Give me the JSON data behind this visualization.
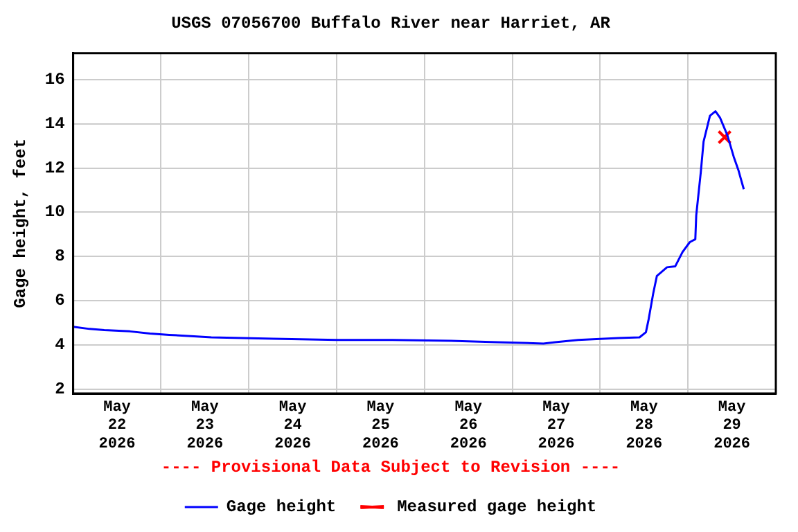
{
  "chart_data": {
    "type": "line",
    "title": "USGS 07056700 Buffalo River near Harriet, AR",
    "ylabel": "Gage height, feet",
    "annotations": [
      "---- Provisional Data Subject to Revision ----"
    ],
    "xlim": [
      "2026-05-22T00:00",
      "2026-05-30T00:00"
    ],
    "xticks": [
      {
        "value": "2026-05-22T00:00",
        "label": null
      },
      {
        "value": "2026-05-22T12:00",
        "label": "May\n22\n2026"
      },
      {
        "value": "2026-05-23T00:00",
        "label": null
      },
      {
        "value": "2026-05-23T12:00",
        "label": "May\n23\n2026"
      },
      {
        "value": "2026-05-24T00:00",
        "label": null
      },
      {
        "value": "2026-05-24T12:00",
        "label": "May\n24\n2026"
      },
      {
        "value": "2026-05-25T00:00",
        "label": null
      },
      {
        "value": "2026-05-25T12:00",
        "label": "May\n25\n2026"
      },
      {
        "value": "2026-05-26T00:00",
        "label": null
      },
      {
        "value": "2026-05-26T12:00",
        "label": "May\n26\n2026"
      },
      {
        "value": "2026-05-27T00:00",
        "label": null
      },
      {
        "value": "2026-05-27T12:00",
        "label": "May\n27\n2026"
      },
      {
        "value": "2026-05-28T00:00",
        "label": null
      },
      {
        "value": "2026-05-28T12:00",
        "label": "May\n28\n2026"
      },
      {
        "value": "2026-05-29T00:00",
        "label": null
      },
      {
        "value": "2026-05-29T12:00",
        "label": "May\n29\n2026"
      },
      {
        "value": "2026-05-30T00:00",
        "label": null
      }
    ],
    "ylim": [
      1.8,
      17.2
    ],
    "yticks": [
      2,
      4,
      6,
      8,
      10,
      12,
      14,
      16
    ],
    "grid": true,
    "legend": "bottom",
    "series": [
      {
        "name": "Gage height",
        "type": "line",
        "color": "#0000ff",
        "marker": "none",
        "line_style": "solid",
        "x": [
          "2026-05-22T00:00",
          "2026-05-22T04:30",
          "2026-05-22T08:30",
          "2026-05-22T15:30",
          "2026-05-22T21:00",
          "2026-05-23T02:15",
          "2026-05-23T09:00",
          "2026-05-23T13:45",
          "2026-05-24T06:45",
          "2026-05-25T00:00",
          "2026-05-25T15:15",
          "2026-05-26T07:15",
          "2026-05-26T19:45",
          "2026-05-27T08:30",
          "2026-05-27T11:45",
          "2026-05-27T18:00",
          "2026-05-28T05:00",
          "2026-05-28T10:45",
          "2026-05-28T12:30",
          "2026-05-28T13:15",
          "2026-05-28T14:30",
          "2026-05-28T15:30",
          "2026-05-28T18:15",
          "2026-05-28T20:30",
          "2026-05-28T22:30",
          "2026-05-29T00:30",
          "2026-05-29T02:00",
          "2026-05-29T02:15",
          "2026-05-29T03:30",
          "2026-05-29T04:15",
          "2026-05-29T06:00",
          "2026-05-29T07:30",
          "2026-05-29T08:45",
          "2026-05-29T10:45",
          "2026-05-29T12:30",
          "2026-05-29T13:45",
          "2026-05-29T15:15"
        ],
        "values": [
          4.82,
          4.72,
          4.67,
          4.61,
          4.51,
          4.45,
          4.39,
          4.34,
          4.28,
          4.22,
          4.22,
          4.18,
          4.12,
          4.06,
          4.12,
          4.22,
          4.31,
          4.34,
          4.57,
          5.16,
          6.33,
          7.12,
          7.51,
          7.55,
          8.2,
          8.65,
          8.78,
          9.86,
          11.82,
          13.19,
          14.37,
          14.57,
          14.28,
          13.49,
          12.51,
          11.92,
          11.04
        ]
      },
      {
        "name": "Measured gage height",
        "type": "scatter",
        "color": "#ff0000",
        "marker": "cross",
        "x": [
          "2026-05-29T10:00"
        ],
        "values": [
          13.4
        ]
      }
    ]
  }
}
